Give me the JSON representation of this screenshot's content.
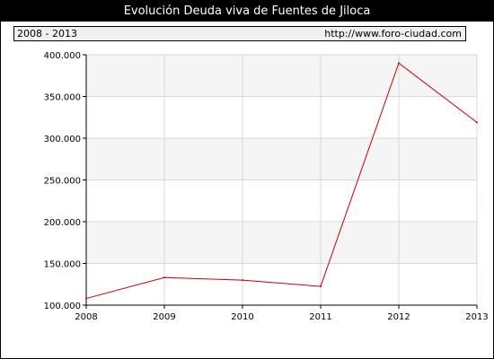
{
  "header": {
    "title": "Evolución Deuda viva de Fuentes de Jiloca",
    "period": "2008 - 2013",
    "source": "http://www.foro-ciudad.com"
  },
  "colors": {
    "line": "#cc0000",
    "band": "#f5f5f5",
    "grid": "#d8d8d8"
  },
  "chart_data": {
    "type": "line",
    "title": "Evolución Deuda viva de Fuentes de Jiloca",
    "xlabel": "",
    "ylabel": "",
    "x": [
      "2008",
      "2009",
      "2010",
      "2011",
      "2012",
      "2013"
    ],
    "series": [
      {
        "values": [
          108000,
          133000,
          130000,
          122500,
          390000,
          319000
        ]
      }
    ],
    "ylim": [
      100000,
      400000
    ],
    "y_ticks": [
      100000,
      150000,
      200000,
      250000,
      300000,
      350000,
      400000
    ],
    "y_tick_labels": [
      "100.000",
      "150.000",
      "200.000",
      "250.000",
      "300.000",
      "350.000",
      "400.000"
    ],
    "grid": true,
    "alternating_bands": true
  }
}
